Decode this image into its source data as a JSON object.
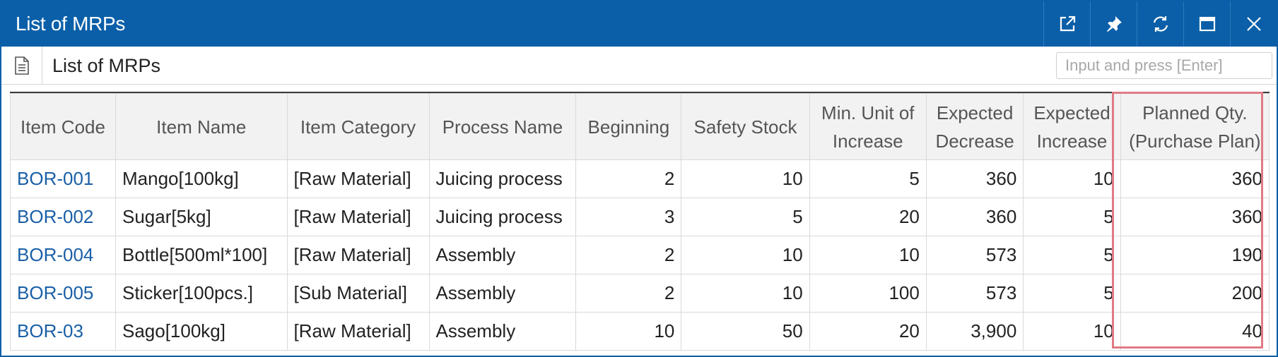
{
  "window": {
    "title": "List of MRPs",
    "buttons": [
      {
        "name": "open-new-window-button",
        "icon": "external-link-icon"
      },
      {
        "name": "pin-button",
        "icon": "pin-icon"
      },
      {
        "name": "refresh-button",
        "icon": "refresh-icon"
      },
      {
        "name": "maximize-button",
        "icon": "maximize-icon"
      },
      {
        "name": "close-button",
        "icon": "close-icon"
      }
    ]
  },
  "header": {
    "icon": "document-icon",
    "title": "List of MRPs",
    "search_placeholder": "Input and press [Enter]"
  },
  "colors": {
    "titlebar": "#0a5fa8",
    "link": "#1a5fa7",
    "highlight": "#e07a86"
  },
  "table": {
    "columns": [
      "Item Code",
      "Item Name",
      "Item Category",
      "Process Name",
      "Beginning",
      "Safety Stock",
      "Min. Unit of Increase",
      "Expected Decrease",
      "Expected Increase",
      "Planned Qty. (Purchase Plan)"
    ],
    "rows": [
      [
        "BOR-001",
        "Mango[100kg]",
        "[Raw Material]",
        "Juicing process",
        "2",
        "10",
        "5",
        "360",
        "10",
        "360"
      ],
      [
        "BOR-002",
        "Sugar[5kg]",
        "[Raw Material]",
        "Juicing process",
        "3",
        "5",
        "20",
        "360",
        "5",
        "360"
      ],
      [
        "BOR-004",
        "Bottle[500ml*100]",
        "[Raw Material]",
        "Assembly",
        "2",
        "10",
        "10",
        "573",
        "5",
        "190"
      ],
      [
        "BOR-005",
        "Sticker[100pcs.]",
        "[Sub Material]",
        "Assembly",
        "2",
        "10",
        "100",
        "573",
        "5",
        "200"
      ],
      [
        "BOR-03",
        "Sago[100kg]",
        "[Raw Material]",
        "Assembly",
        "10",
        "50",
        "20",
        "3,900",
        "10",
        "40"
      ]
    ]
  }
}
